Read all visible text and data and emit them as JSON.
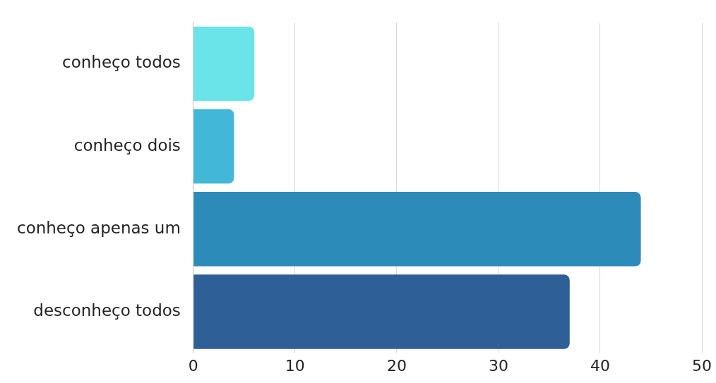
{
  "chart_data": {
    "type": "bar",
    "orientation": "horizontal",
    "categories": [
      "conheço todos",
      "conheço dois",
      "conheço apenas um",
      "desconheço todos"
    ],
    "values": [
      6,
      4,
      44,
      37
    ],
    "colors": [
      "#6ae4e8",
      "#42b7d7",
      "#2d8bb9",
      "#2e5f96"
    ],
    "xlim": [
      0,
      50
    ],
    "xticks": [
      0,
      10,
      20,
      30,
      40,
      50
    ],
    "grid": "x",
    "legend": false
  }
}
